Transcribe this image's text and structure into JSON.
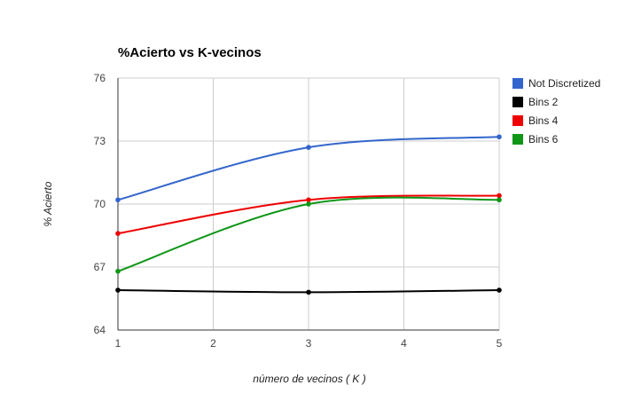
{
  "chart_data": {
    "type": "line",
    "title": "%Acierto vs K-vecinos",
    "xlabel": "número de vecinos ( K )",
    "ylabel": "% Acierto",
    "x": [
      1,
      3,
      5
    ],
    "xlim": [
      1,
      5
    ],
    "ylim": [
      64,
      76
    ],
    "x_ticks": [
      "1",
      "2",
      "3",
      "4",
      "5"
    ],
    "y_ticks": [
      "64",
      "67",
      "70",
      "73",
      "76"
    ],
    "grid": true,
    "legend_position": "right",
    "series": [
      {
        "name": "Not Discretized",
        "color": "#3366cc",
        "values": [
          70.2,
          72.7,
          73.2
        ]
      },
      {
        "name": "Bins 2",
        "color": "#000000",
        "values": [
          65.9,
          65.8,
          65.9
        ]
      },
      {
        "name": "Bins 4",
        "color": "#ee0000",
        "values": [
          68.6,
          70.2,
          70.4
        ]
      },
      {
        "name": "Bins 6",
        "color": "#109618",
        "values": [
          66.8,
          70.0,
          70.2
        ]
      }
    ]
  }
}
